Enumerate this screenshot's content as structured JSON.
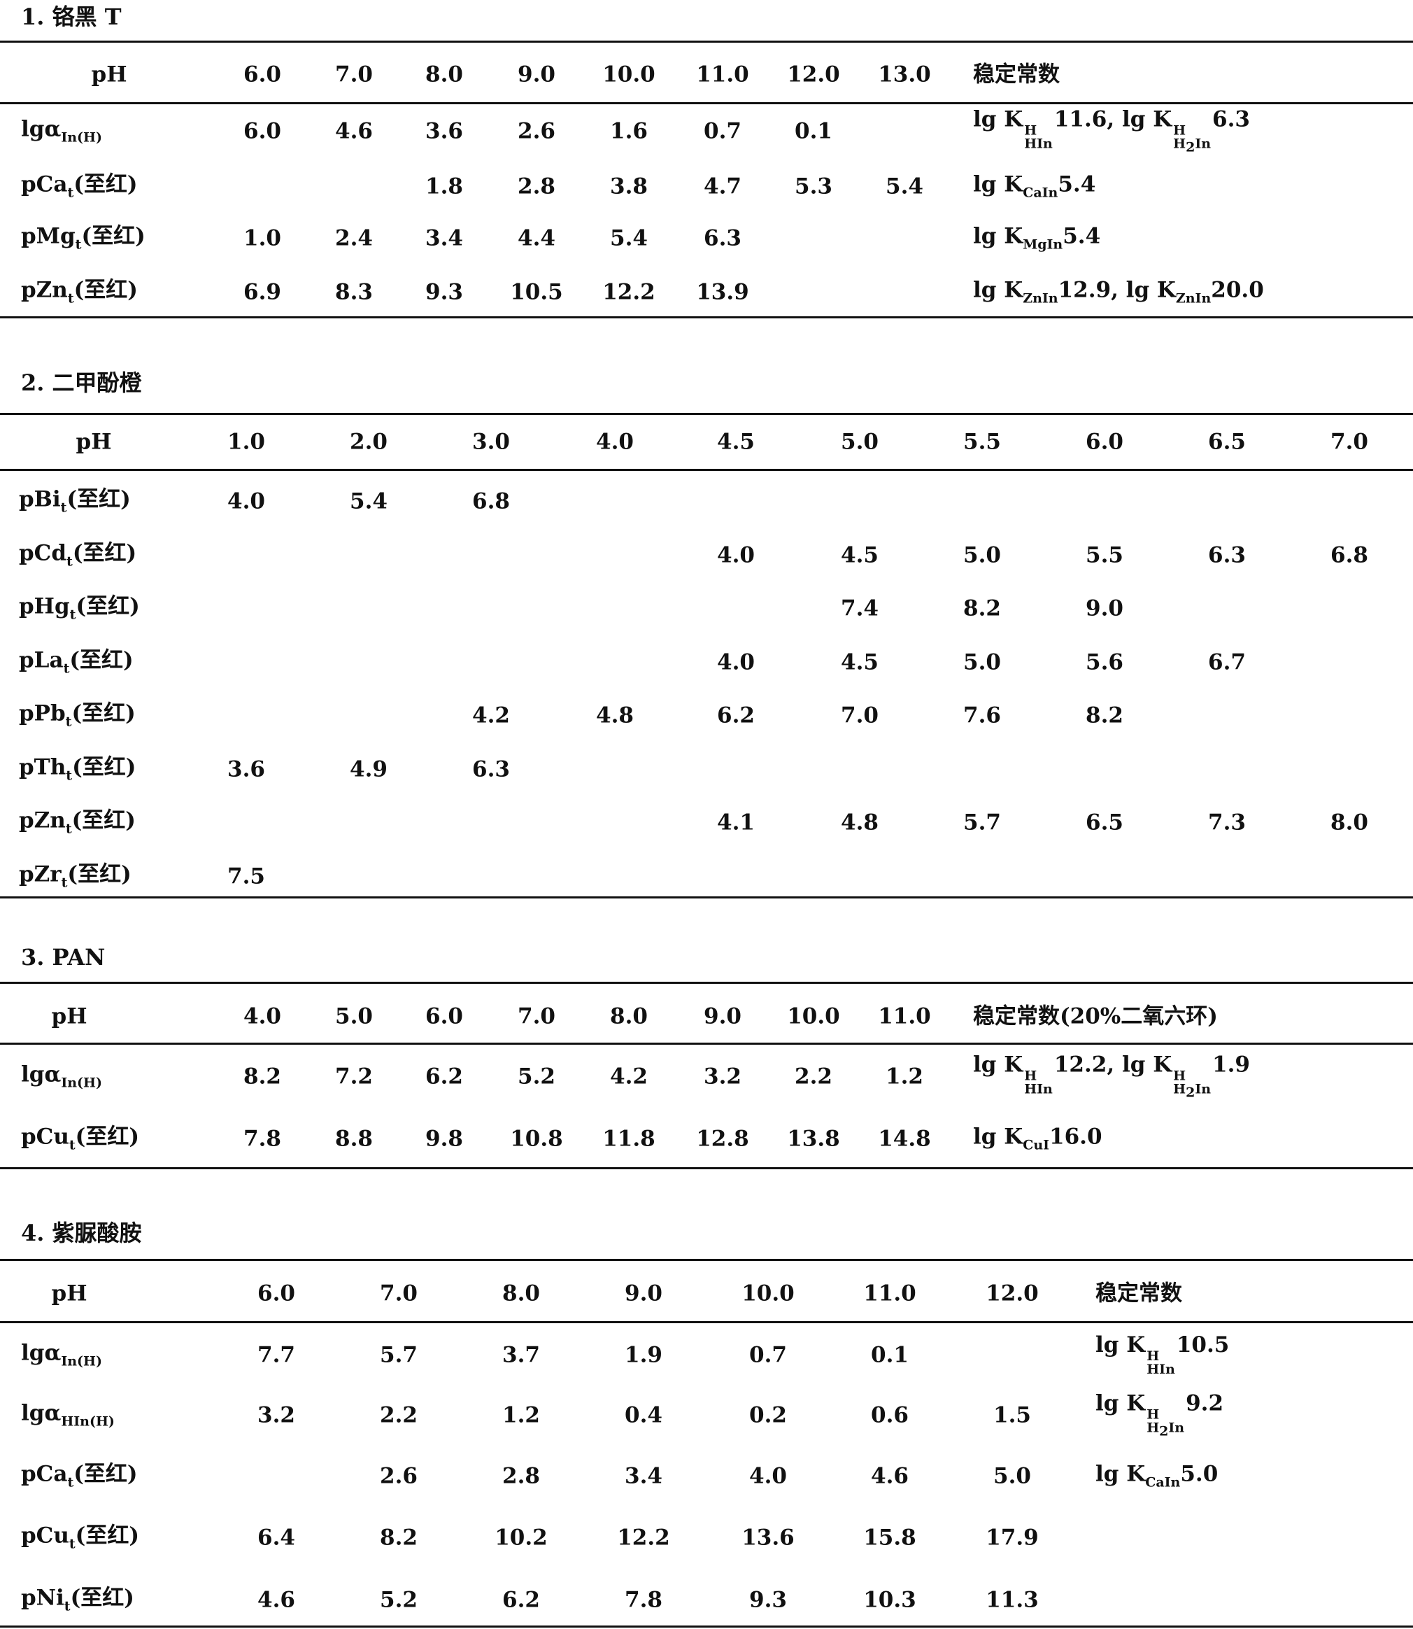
{
  "sections": [
    {
      "title": "1. 铬黑 T",
      "header": [
        "pH",
        "6.0",
        "7.0",
        "8.0",
        "9.0",
        "10.0",
        "11.0",
        "12.0",
        "13.0",
        "稳定常数"
      ],
      "rows": [
        [
          [
            {
              "t": "lgα"
            },
            {
              "sub": "In(H)"
            }
          ],
          "6.0",
          "4.6",
          "3.6",
          "2.6",
          "1.6",
          "0.7",
          "0.1",
          null,
          [
            {
              "t": "lg K"
            },
            {
              "sup": "H",
              "sub": "HIn"
            },
            {
              "t": "11.6, lg K"
            },
            {
              "sup": "H",
              "sub": [
                {
                  "t": "H"
                },
                {
                  "sub": "2"
                },
                {
                  "t": "In"
                }
              ]
            },
            {
              "t": "6.3"
            }
          ]
        ],
        [
          [
            {
              "t": "pCa"
            },
            {
              "sub": "t"
            },
            {
              "t": "(至红)"
            }
          ],
          null,
          null,
          "1.8",
          "2.8",
          "3.8",
          "4.7",
          "5.3",
          "5.4",
          [
            {
              "t": "lg K"
            },
            {
              "sub": "CaIn"
            },
            {
              "t": "5.4"
            }
          ]
        ],
        [
          [
            {
              "t": "pMg"
            },
            {
              "sub": "t"
            },
            {
              "t": "(至红)"
            }
          ],
          "1.0",
          "2.4",
          "3.4",
          "4.4",
          "5.4",
          "6.3",
          null,
          null,
          [
            {
              "t": "lg K"
            },
            {
              "sub": "MgIn"
            },
            {
              "t": "5.4"
            }
          ]
        ],
        [
          [
            {
              "t": "pZn"
            },
            {
              "sub": "t"
            },
            {
              "t": "(至红)"
            }
          ],
          "6.9",
          "8.3",
          "9.3",
          "10.5",
          "12.2",
          "13.9",
          null,
          null,
          [
            {
              "t": "lg K"
            },
            {
              "sub": "ZnIn"
            },
            {
              "t": "12.9, lg K"
            },
            {
              "sub": "ZnIn"
            },
            {
              "t": "20.0"
            }
          ]
        ]
      ]
    },
    {
      "title": "2. 二甲酚橙",
      "header": [
        "pH",
        "1.0",
        "2.0",
        "3.0",
        "4.0",
        "4.5",
        "5.0",
        "5.5",
        "6.0",
        "6.5",
        "7.0"
      ],
      "rows": [
        [
          [
            {
              "t": "pBi"
            },
            {
              "sub": "t"
            },
            {
              "t": "(至红)"
            }
          ],
          "4.0",
          "5.4",
          "6.8",
          null,
          null,
          null,
          null,
          null,
          null,
          null
        ],
        [
          [
            {
              "t": "pCd"
            },
            {
              "sub": "t"
            },
            {
              "t": "(至红)"
            }
          ],
          null,
          null,
          null,
          null,
          "4.0",
          "4.5",
          "5.0",
          "5.5",
          "6.3",
          "6.8"
        ],
        [
          [
            {
              "t": "pHg"
            },
            {
              "sub": "t"
            },
            {
              "t": "(至红)"
            }
          ],
          null,
          null,
          null,
          null,
          null,
          "7.4",
          "8.2",
          "9.0",
          null,
          null
        ],
        [
          [
            {
              "t": "pLa"
            },
            {
              "sub": "t"
            },
            {
              "t": "(至红)"
            }
          ],
          null,
          null,
          null,
          null,
          "4.0",
          "4.5",
          "5.0",
          "5.6",
          "6.7",
          null
        ],
        [
          [
            {
              "t": "pPb"
            },
            {
              "sub": "t"
            },
            {
              "t": "(至红)"
            }
          ],
          null,
          null,
          "4.2",
          "4.8",
          "6.2",
          "7.0",
          "7.6",
          "8.2",
          null,
          null
        ],
        [
          [
            {
              "t": "pTh"
            },
            {
              "sub": "t"
            },
            {
              "t": "(至红)"
            }
          ],
          "3.6",
          "4.9",
          "6.3",
          null,
          null,
          null,
          null,
          null,
          null,
          null
        ],
        [
          [
            {
              "t": "pZn"
            },
            {
              "sub": "t"
            },
            {
              "t": "(至红)"
            }
          ],
          null,
          null,
          null,
          null,
          "4.1",
          "4.8",
          "5.7",
          "6.5",
          "7.3",
          "8.0"
        ],
        [
          [
            {
              "t": "pZr"
            },
            {
              "sub": "t"
            },
            {
              "t": "(至红)"
            }
          ],
          "7.5",
          null,
          null,
          null,
          null,
          null,
          null,
          null,
          null,
          null
        ]
      ]
    },
    {
      "title": "3. PAN",
      "header": [
        "pH",
        "4.0",
        "5.0",
        "6.0",
        "7.0",
        "8.0",
        "9.0",
        "10.0",
        "11.0",
        "稳定常数(20%二氧六环)"
      ],
      "rows": [
        [
          [
            {
              "t": "lgα"
            },
            {
              "sub": "In(H)"
            }
          ],
          "8.2",
          "7.2",
          "6.2",
          "5.2",
          "4.2",
          "3.2",
          "2.2",
          "1.2",
          [
            {
              "t": "lg K"
            },
            {
              "sup": "H",
              "sub": "HIn"
            },
            {
              "t": "12.2, lg K"
            },
            {
              "sup": "H",
              "sub": [
                {
                  "t": "H"
                },
                {
                  "sub": "2"
                },
                {
                  "t": "In"
                }
              ]
            },
            {
              "t": "1.9"
            }
          ]
        ],
        [
          [
            {
              "t": "pCu"
            },
            {
              "sub": "t"
            },
            {
              "t": "(至红)"
            }
          ],
          "7.8",
          "8.8",
          "9.8",
          "10.8",
          "11.8",
          "12.8",
          "13.8",
          "14.8",
          [
            {
              "t": "lg K"
            },
            {
              "sub": "CuI"
            },
            {
              "t": "16.0"
            }
          ]
        ]
      ]
    },
    {
      "title": "4. 紫脲酸胺",
      "header": [
        "pH",
        "6.0",
        "7.0",
        "8.0",
        "9.0",
        "10.0",
        "11.0",
        "12.0",
        "稳定常数"
      ],
      "rows": [
        [
          [
            {
              "t": "lgα"
            },
            {
              "sub": "In(H)"
            }
          ],
          "7.7",
          "5.7",
          "3.7",
          "1.9",
          "0.7",
          "0.1",
          null,
          [
            {
              "t": "lg K"
            },
            {
              "sup": "H",
              "sub": "HIn"
            },
            {
              "t": "10.5"
            }
          ]
        ],
        [
          [
            {
              "t": "lgα"
            },
            {
              "sub": "HIn(H)"
            }
          ],
          "3.2",
          "2.2",
          "1.2",
          "0.4",
          "0.2",
          "0.6",
          "1.5",
          [
            {
              "t": "lg K"
            },
            {
              "sup": "H",
              "sub": [
                {
                  "t": "H"
                },
                {
                  "sub": "2"
                },
                {
                  "t": "In"
                }
              ]
            },
            {
              "t": "9.2"
            }
          ]
        ],
        [
          [
            {
              "t": "pCa"
            },
            {
              "sub": "t"
            },
            {
              "t": "(至红)"
            }
          ],
          null,
          "2.6",
          "2.8",
          "3.4",
          "4.0",
          "4.6",
          "5.0",
          [
            {
              "t": "lg K"
            },
            {
              "sub": "CaIn"
            },
            {
              "t": "5.0"
            }
          ]
        ],
        [
          [
            {
              "t": "pCu"
            },
            {
              "sub": "t"
            },
            {
              "t": "(至红)"
            }
          ],
          "6.4",
          "8.2",
          "10.2",
          "12.2",
          "13.6",
          "15.8",
          "17.9",
          null
        ],
        [
          [
            {
              "t": "pNi"
            },
            {
              "sub": "t"
            },
            {
              "t": "(至红)"
            }
          ],
          "4.6",
          "5.2",
          "6.2",
          "7.8",
          "9.3",
          "10.3",
          "11.3",
          null
        ]
      ]
    }
  ]
}
